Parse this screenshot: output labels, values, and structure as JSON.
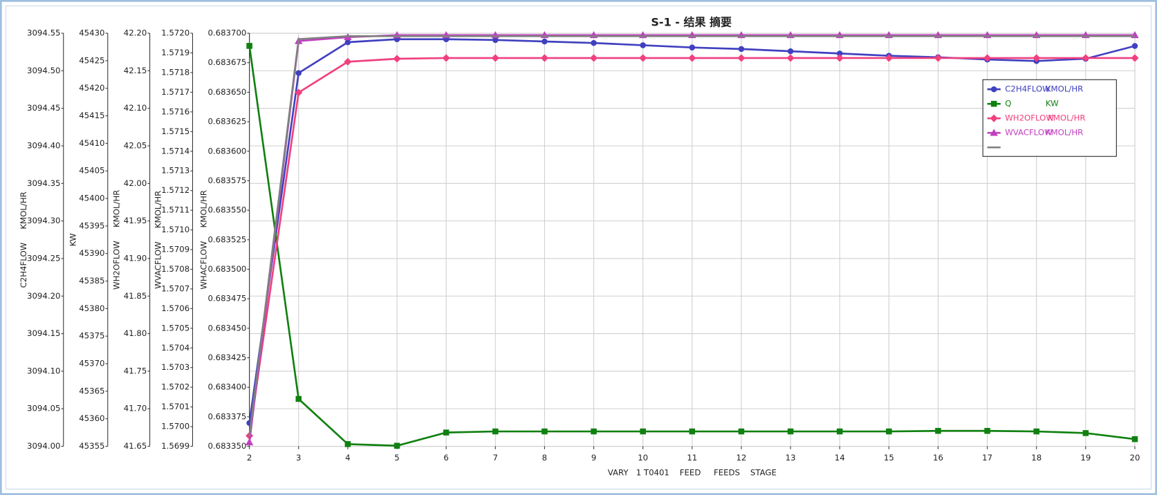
{
  "chart_data": {
    "type": "line",
    "title": "S-1 - 结果 摘要",
    "x_label": "VARY   1 T0401    FEED     FEEDS    STAGE",
    "x": [
      2,
      3,
      4,
      5,
      6,
      7,
      8,
      9,
      10,
      11,
      12,
      13,
      14,
      15,
      16,
      17,
      18,
      19,
      20
    ],
    "xlim": [
      2,
      20
    ],
    "xticks": [
      2,
      3,
      4,
      5,
      6,
      7,
      8,
      9,
      10,
      11,
      12,
      13,
      14,
      15,
      16,
      17,
      18,
      19,
      20
    ],
    "grid": true,
    "legend": "upper right",
    "axes": [
      {
        "title": "C2H4FLOW",
        "unit": "KMOL/HR",
        "ylim": [
          3094.0,
          3094.55
        ],
        "yticks": [
          {
            "value": 3094.0,
            "label": "3094.00"
          },
          3094.05,
          {
            "value": 3094.1,
            "label": "3094.10"
          },
          3094.15,
          {
            "value": 3094.2,
            "label": "3094.20"
          },
          3094.25,
          {
            "value": 3094.3,
            "label": "3094.30"
          },
          3094.35,
          {
            "value": 3094.4,
            "label": "3094.40"
          },
          3094.45,
          {
            "value": 3094.5,
            "label": "3094.50"
          },
          3094.55
        ]
      },
      {
        "title": "KW",
        "ylim": [
          45355,
          45430
        ],
        "yticks": [
          45355,
          45360,
          45365,
          45370,
          45375,
          45380,
          45385,
          45390,
          45395,
          45400,
          45405,
          45410,
          45415,
          45420,
          45425,
          45430
        ]
      },
      {
        "title": "WH2OFLOW",
        "unit": "KMOL/HR",
        "ylim": [
          41.65,
          42.2
        ],
        "yticks": [
          41.65,
          {
            "value": 41.7,
            "label": "41.70"
          },
          41.75,
          {
            "value": 41.8,
            "label": "41.80"
          },
          41.85,
          {
            "value": 41.9,
            "label": "41.90"
          },
          41.95,
          {
            "value": 42.0,
            "label": "42.00"
          },
          42.05,
          {
            "value": 42.1,
            "label": "42.10"
          },
          42.15,
          {
            "value": 42.2,
            "label": "42.20"
          }
        ]
      },
      {
        "title": "WVACFLOW",
        "unit": "KMOL/HR",
        "ylim": [
          1.5699,
          1.572
        ],
        "yticks": [
          1.5699,
          {
            "value": 1.57,
            "label": "1.5700"
          },
          1.5701,
          1.5702,
          1.5703,
          1.5704,
          1.5705,
          1.5706,
          1.5707,
          1.5708,
          1.5709,
          {
            "value": 1.571,
            "label": "1.5710"
          },
          1.5711,
          1.5712,
          1.5713,
          1.5714,
          1.5715,
          1.5716,
          1.5717,
          1.5718,
          1.5719,
          {
            "value": 1.572,
            "label": "1.5720"
          }
        ]
      },
      {
        "title": "WHACFLOW",
        "unit": "KMOL/HR",
        "ylim": [
          0.68335,
          0.6837
        ],
        "yticks": [
          {
            "value": 0.68335,
            "label": "0.683350"
          },
          0.683375,
          {
            "value": 0.6834,
            "label": "0.683400"
          },
          0.683425,
          {
            "value": 0.68345,
            "label": "0.683450"
          },
          0.683475,
          {
            "value": 0.6835,
            "label": "0.683500"
          },
          0.683525,
          {
            "value": 0.68355,
            "label": "0.683550"
          },
          0.683575,
          {
            "value": 0.6836,
            "label": "0.683600"
          },
          0.683625,
          {
            "value": 0.68365,
            "label": "0.683650"
          },
          0.683675,
          {
            "value": 0.6837,
            "label": "0.683700"
          }
        ]
      }
    ],
    "series": [
      {
        "name": "C2H4FLOW",
        "unit": "KMOL/HR",
        "color": "#4040c0",
        "marker": "circle",
        "axis": 0,
        "values": [
          3094.031,
          3094.497,
          3094.538,
          3094.542,
          3094.542,
          3094.541,
          3094.539,
          3094.537,
          3094.534,
          3094.531,
          3094.529,
          3094.526,
          3094.523,
          3094.52,
          3094.518,
          3094.515,
          3094.513,
          3094.516,
          3094.533
        ]
      },
      {
        "name": "Q",
        "unit": "KW",
        "color": "#108010",
        "marker": "square",
        "axis": 1,
        "values": [
          45427.7,
          45363.6,
          45355.4,
          45355.1,
          45357.5,
          45357.7,
          45357.7,
          45357.7,
          45357.7,
          45357.7,
          45357.7,
          45357.7,
          45357.7,
          45357.7,
          45357.8,
          45357.8,
          45357.7,
          45357.4,
          45356.3
        ]
      },
      {
        "name": "WH2OFLOW",
        "unit": "KMOL/HR",
        "color": "#f0407f",
        "marker": "diamond",
        "axis": 2,
        "values": [
          41.664,
          42.121,
          42.162,
          42.166,
          42.167,
          42.167,
          42.167,
          42.167,
          42.167,
          42.167,
          42.167,
          42.167,
          42.167,
          42.167,
          42.167,
          42.167,
          42.167,
          42.167,
          42.167
        ]
      },
      {
        "name": "WVACFLOW",
        "unit": "KMOL/HR",
        "color": "#c040c0",
        "marker": "triangle",
        "axis": 3,
        "values": [
          1.56992,
          1.57196,
          1.57198,
          1.57199,
          1.57199,
          1.57199,
          1.57199,
          1.57199,
          1.57199,
          1.57199,
          1.57199,
          1.57199,
          1.57199,
          1.57199,
          1.57199,
          1.57199,
          1.57199,
          1.57199,
          1.57199
        ]
      },
      {
        "color": "#808080",
        "marker": "none",
        "axis": 4,
        "values": [
          0.6833588,
          0.683695,
          0.6836975,
          0.6836975,
          0.6836975,
          0.6836975,
          0.6836975,
          0.6836975,
          0.6836975,
          0.6836975,
          0.6836975,
          0.6836975,
          0.6836975,
          0.6836975,
          0.6836975,
          0.6836975,
          0.6836975,
          0.6836975,
          0.6836975
        ]
      }
    ]
  }
}
